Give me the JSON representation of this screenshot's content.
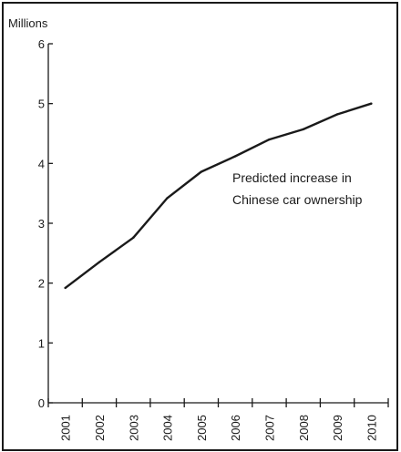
{
  "chart_data": {
    "type": "line",
    "ylabel": "Millions",
    "annotation_lines": [
      "Predicted increase in",
      "Chinese car ownership"
    ],
    "ylim": [
      0,
      6
    ],
    "y_ticks": [
      0,
      1,
      2,
      3,
      4,
      5,
      6
    ],
    "categories": [
      "2001",
      "2002",
      "2003",
      "2004",
      "2005",
      "2006",
      "2007",
      "2008",
      "2009",
      "2010"
    ],
    "series": [
      {
        "values": [
          1.92,
          2.35,
          2.76,
          3.42,
          3.86,
          4.12,
          4.4,
          4.57,
          4.82,
          5.0
        ]
      }
    ],
    "grid": false,
    "legend": "none",
    "line_color": "#1a1a1a"
  }
}
